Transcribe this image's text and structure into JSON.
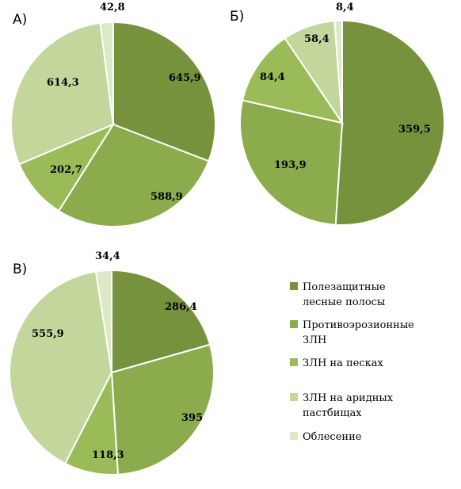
{
  "colors": [
    "#76923c",
    "#8bab4c",
    "#9bbb59",
    "#c3d69b",
    "#dde8c6"
  ],
  "legend": [
    "Полезащитные лесные полосы",
    "Противоэрозионные ЗЛН",
    "ЗЛН на песках",
    "ЗЛН на аридных пастбищах",
    "Облесение"
  ],
  "chart_data": [
    {
      "type": "pie",
      "panel": "А)",
      "categories": [
        "Полезащитные лесные полосы",
        "Противоэрозионные ЗЛН",
        "ЗЛН на песках",
        "ЗЛН на аридных пастбищах",
        "Облесение"
      ],
      "values": [
        645.9,
        588.9,
        202.7,
        614.3,
        42.8
      ],
      "labels": [
        "645,9",
        "588,9",
        "202,7",
        "614,3",
        "42,8"
      ]
    },
    {
      "type": "pie",
      "panel": "Б)",
      "categories": [
        "Полезащитные лесные полосы",
        "Противоэрозионные ЗЛН",
        "ЗЛН на песках",
        "ЗЛН на аридных пастбищах",
        "Облесение"
      ],
      "values": [
        359.5,
        193.9,
        84.4,
        58.4,
        8.4
      ],
      "labels": [
        "359,5",
        "193,9",
        "84,4",
        "58,4",
        "8,4"
      ]
    },
    {
      "type": "pie",
      "panel": "В)",
      "categories": [
        "Полезащитные лесные полосы",
        "Противоэрозионные ЗЛН",
        "ЗЛН на песках",
        "ЗЛН на аридных пастбищах",
        "Облесение"
      ],
      "values": [
        286.4,
        395,
        118.3,
        555.9,
        34.4
      ],
      "labels": [
        "286,4",
        "395",
        "118,3",
        "555,9",
        "34,4"
      ]
    }
  ]
}
